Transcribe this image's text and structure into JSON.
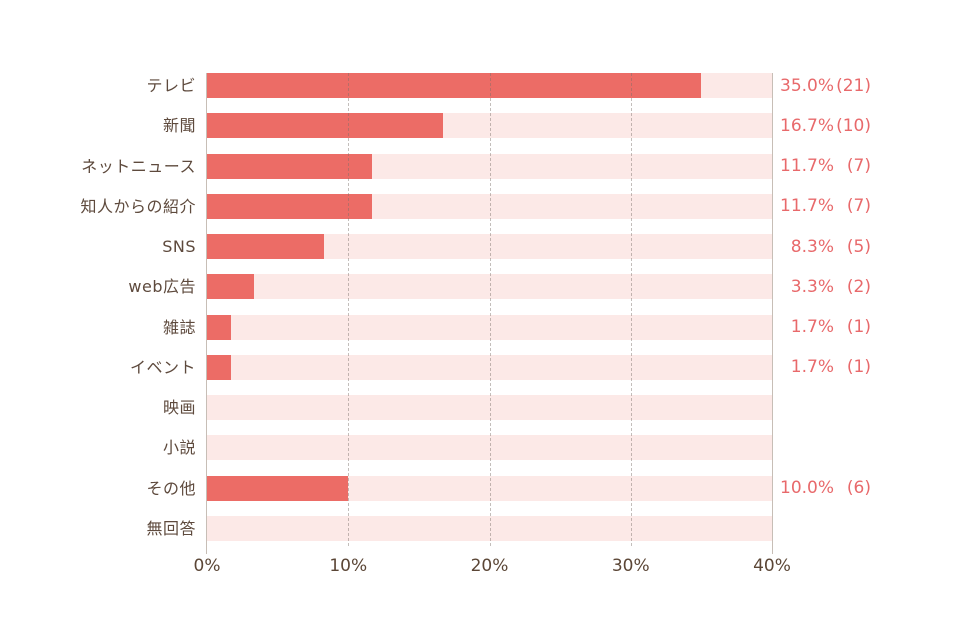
{
  "chart_data": {
    "type": "bar",
    "orientation": "horizontal",
    "title": "",
    "xlabel": "",
    "ylabel": "",
    "xlim": [
      0,
      40
    ],
    "grid": "dashed-vertical",
    "categories": [
      "テレビ",
      "新聞",
      "ネットニュース",
      "知人からの紹介",
      "SNS",
      "web広告",
      "雑誌",
      "イベント",
      "映画",
      "小説",
      "その他",
      "無回答"
    ],
    "values": [
      35.0,
      16.7,
      11.7,
      11.7,
      8.3,
      3.3,
      1.7,
      1.7,
      0,
      0,
      10.0,
      0
    ],
    "counts": [
      21,
      10,
      7,
      7,
      5,
      2,
      1,
      1,
      0,
      0,
      6,
      0
    ],
    "value_labels": [
      "35.0%",
      "16.7%",
      "11.7%",
      "11.7%",
      "8.3%",
      "3.3%",
      "1.7%",
      "1.7%",
      "",
      "",
      "10.0%",
      ""
    ],
    "count_labels": [
      "(21)",
      "(10)",
      "(7)",
      "(7)",
      "(5)",
      "(2)",
      "(1)",
      "(1)",
      "",
      "",
      "(6)",
      ""
    ],
    "x_tick_labels": [
      "0%",
      "10%",
      "20%",
      "30%",
      "40%"
    ],
    "x_tick_values": [
      0,
      10,
      20,
      30,
      40
    ],
    "gridline_values": [
      10,
      20,
      30
    ],
    "colors": {
      "bar": "#ec6c66",
      "track": "#fce9e7",
      "value_text": "#e8696b",
      "category_text": "#5e4a3d",
      "tick_text": "#5b4636",
      "axis_line": "#c7beb6",
      "gridline": "rgba(122,110,104,0.45)",
      "background": "#ffffff"
    }
  }
}
